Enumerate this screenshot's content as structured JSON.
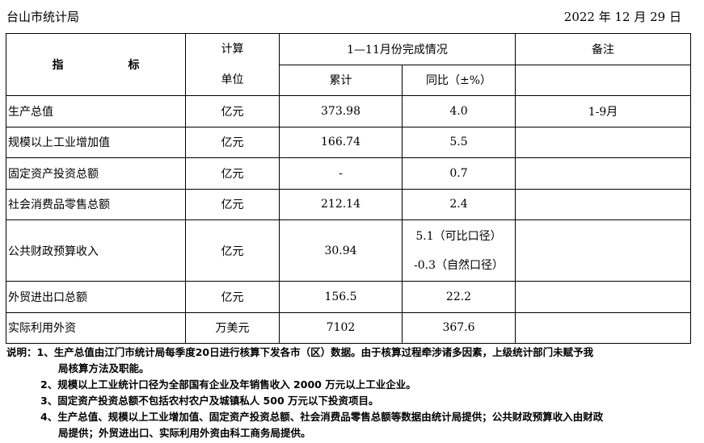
{
  "header": {
    "org": "台山市统计局",
    "date": "2022 年 12 月 29 日"
  },
  "table": {
    "col_indicator": [
      "指",
      "标"
    ],
    "col_unit": [
      "计算",
      "单位"
    ],
    "col_period": "1—11月份完成情况",
    "col_cumulative": "累计",
    "col_yoy": "同比（±%）",
    "col_note": "备注",
    "rows": [
      {
        "name": "生产总值",
        "unit": "亿元",
        "cum": "373.98",
        "yoy": "4.0",
        "note": "1-9月"
      },
      {
        "name": "规模以上工业增加值",
        "unit": "亿元",
        "cum": "166.74",
        "yoy": "5.5",
        "note": ""
      },
      {
        "name": "固定资产投资总额",
        "unit": "亿元",
        "cum": "-",
        "yoy": "0.7",
        "note": ""
      },
      {
        "name": "社会消费品零售总额",
        "unit": "亿元",
        "cum": "212.14",
        "yoy": "2.4",
        "note": ""
      },
      {
        "name": "公共财政预算收入",
        "unit": "亿元",
        "cum": "30.94",
        "yoy": "5.1（可比口径）",
        "yoy2": "-0.3（自然口径）",
        "note": ""
      },
      {
        "name": "外贸进出口总额",
        "unit": "亿元",
        "cum": "156.5",
        "yoy": "22.2",
        "note": ""
      },
      {
        "name": "实际利用外资",
        "unit": "万美元",
        "cum": "7102",
        "yoy": "367.6",
        "note": ""
      }
    ]
  },
  "notes": {
    "n1a": "说明：1、生产总值由江门市统计局每季度20日进行核算下发各市（区）数据。由于核算过程牵涉诸多因素，上级统计部门未赋予我",
    "n1b": "局核算方法及职能。",
    "n2": "2、规模以上工业统计口径为全部国有企业及年销售收入 2000 万元以上工业企业。",
    "n3": "3、固定资产投资总额不包括农村农户及城镇私人 500 万元以下投资项目。",
    "n4a": "4、生产总值、规模以上工业增加值、固定资产投资总额、社会消费品零售总额等数据由统计局提供；公共财政预算收入由财政",
    "n4b": "局提供；外贸进出口、实际利用外资由科工商务局提供。"
  }
}
